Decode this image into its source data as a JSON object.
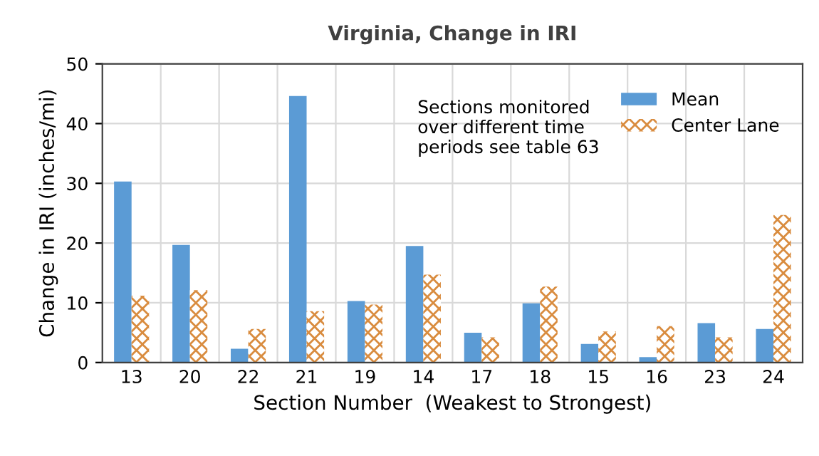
{
  "chart_data": {
    "type": "bar",
    "title": "Virginia, Change in IRI",
    "xlabel": "Section Number  (Weakest to Strongest)",
    "ylabel": "Change in IRI (inches/mi)",
    "categories": [
      "13",
      "20",
      "22",
      "21",
      "19",
      "14",
      "17",
      "18",
      "15",
      "16",
      "23",
      "24"
    ],
    "series": [
      {
        "name": "Mean",
        "color": "#5b9bd5",
        "values": [
          30.3,
          19.7,
          2.3,
          44.6,
          10.3,
          19.5,
          5.0,
          9.9,
          3.1,
          0.9,
          6.6,
          5.6
        ]
      },
      {
        "name": "Center Lane",
        "color": "#d98c3f",
        "values": [
          11.2,
          12.1,
          5.6,
          8.6,
          9.7,
          14.7,
          4.2,
          12.7,
          5.2,
          6.1,
          4.2,
          24.7
        ]
      }
    ],
    "ylim": [
      0,
      50
    ],
    "yticks": [
      0,
      10,
      20,
      30,
      40,
      50
    ],
    "grid": true,
    "legend": "top right",
    "annotations": [
      "Sections monitored\nover different time\nperiods see table 63"
    ]
  }
}
